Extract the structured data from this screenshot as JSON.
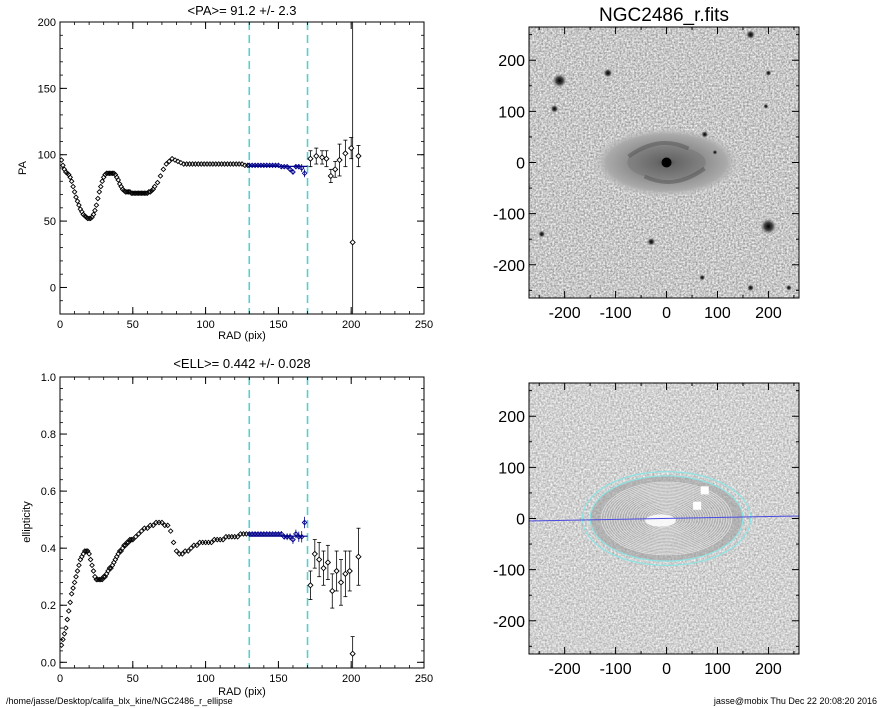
{
  "footer": {
    "path": "/home/jasse/Desktop/califa_blx_kine/NGC2486_r_ellipse",
    "stamp": "jasse@mobix  Thu Dec 22 20:08:20 2016"
  },
  "colors": {
    "ink": "#000000",
    "fit": "#00008b",
    "range": "#55d0d0",
    "contour": "#8fe3e3"
  },
  "chart_data": [
    {
      "type": "scatter",
      "title": "<PA>=  91.2 +/-   2.3",
      "xlabel": "RAD (pix)",
      "ylabel": "PA",
      "xlim": [
        0,
        250
      ],
      "ylim": [
        -20,
        200
      ],
      "xticks": [
        0,
        50,
        100,
        150,
        200,
        250
      ],
      "yticks": [
        0,
        50,
        100,
        150,
        200
      ],
      "range_lines": [
        130,
        170
      ],
      "fit_line": {
        "x": [
          130,
          170
        ],
        "y": [
          91.2,
          91.2
        ]
      },
      "profile": {
        "x": [
          1,
          2,
          3,
          4,
          5,
          6,
          7,
          8,
          9,
          10,
          11,
          12,
          13,
          14,
          15,
          16,
          17,
          18,
          19,
          20,
          21,
          22,
          23,
          24,
          25,
          26,
          27,
          28,
          29,
          30,
          31,
          32,
          33,
          34,
          35,
          36,
          37,
          38,
          39,
          40,
          41,
          42,
          43,
          44,
          45,
          46,
          47,
          48,
          49,
          50,
          51,
          52,
          53,
          54,
          55,
          56,
          57,
          58,
          59,
          60,
          61,
          62,
          63,
          64,
          65,
          67,
          69,
          71,
          73,
          75,
          77,
          79,
          81,
          83,
          85,
          87,
          89,
          91,
          93,
          95,
          97,
          99,
          101,
          103,
          105,
          107,
          109,
          111,
          113,
          115,
          117,
          119,
          121,
          123,
          125,
          127,
          129
        ],
        "y": [
          96,
          92,
          89,
          87,
          86,
          85,
          83,
          80,
          76,
          72,
          68,
          65,
          62,
          59,
          57,
          55,
          54,
          53,
          52,
          52,
          52,
          53,
          55,
          58,
          62,
          67,
          72,
          76,
          80,
          83,
          85,
          86,
          86,
          86,
          86,
          86,
          86,
          85,
          83,
          81,
          78,
          76,
          74,
          73,
          72,
          72,
          72,
          72,
          71,
          71,
          71,
          71,
          71,
          71,
          71,
          71,
          71,
          71,
          71,
          71,
          72,
          72,
          73,
          74,
          76,
          79,
          84,
          89,
          93,
          95,
          97,
          96,
          95,
          94,
          93,
          93,
          93,
          93,
          93,
          93,
          93,
          93,
          93,
          93,
          93,
          93,
          93,
          93,
          93,
          93,
          93,
          93,
          93,
          93,
          93,
          92,
          92
        ]
      },
      "fit_points": {
        "x": [
          130,
          132,
          134,
          136,
          138,
          140,
          142,
          144,
          146,
          148,
          150,
          152,
          154,
          156,
          158,
          160,
          162,
          164,
          166,
          168
        ],
        "y": [
          92,
          92,
          92,
          92,
          92,
          92,
          92,
          92,
          92,
          92,
          92,
          91,
          91,
          91,
          89,
          87,
          91,
          91,
          90,
          86
        ],
        "err": [
          1,
          1,
          1,
          1,
          1,
          1,
          1,
          1,
          1,
          1,
          1,
          1,
          1,
          1,
          2,
          2,
          2,
          2,
          3,
          3
        ]
      },
      "outer_points": {
        "x": [
          172,
          176,
          180,
          183,
          186,
          189,
          192,
          196,
          200,
          201,
          205
        ],
        "y": [
          97,
          99,
          98,
          97,
          84,
          89,
          96,
          101,
          105,
          34,
          99
        ],
        "err": [
          6,
          6,
          5,
          6,
          5,
          6,
          12,
          10,
          8,
          200,
          8
        ]
      }
    },
    {
      "type": "scatter",
      "title": "<ELL>= 0.442 +/-  0.028",
      "xlabel": "RAD (pix)",
      "ylabel": "ellipticity",
      "xlim": [
        0,
        250
      ],
      "ylim": [
        -0.02,
        1.0
      ],
      "xticks": [
        0,
        50,
        100,
        150,
        200,
        250
      ],
      "yticks": [
        0.0,
        0.2,
        0.4,
        0.6,
        0.8,
        1.0
      ],
      "range_lines": [
        130,
        170
      ],
      "fit_line": {
        "x": [
          130,
          170
        ],
        "y": [
          0.442,
          0.442
        ]
      },
      "profile": {
        "x": [
          1,
          2,
          3,
          4,
          5,
          6,
          7,
          8,
          9,
          10,
          11,
          12,
          13,
          14,
          15,
          16,
          17,
          18,
          19,
          20,
          21,
          22,
          23,
          24,
          25,
          26,
          27,
          28,
          29,
          30,
          31,
          32,
          33,
          34,
          35,
          36,
          37,
          38,
          39,
          40,
          41,
          42,
          43,
          44,
          45,
          46,
          47,
          48,
          49,
          50,
          52,
          54,
          56,
          58,
          60,
          62,
          64,
          66,
          68,
          70,
          72,
          74,
          76,
          78,
          80,
          82,
          84,
          86,
          88,
          90,
          92,
          94,
          96,
          98,
          100,
          102,
          104,
          106,
          108,
          110,
          112,
          114,
          116,
          118,
          120,
          122,
          124,
          126,
          128
        ],
        "y": [
          0.06,
          0.08,
          0.1,
          0.12,
          0.15,
          0.18,
          0.21,
          0.24,
          0.26,
          0.28,
          0.3,
          0.32,
          0.34,
          0.36,
          0.37,
          0.38,
          0.39,
          0.39,
          0.39,
          0.38,
          0.36,
          0.34,
          0.32,
          0.3,
          0.29,
          0.29,
          0.29,
          0.29,
          0.29,
          0.3,
          0.3,
          0.31,
          0.32,
          0.33,
          0.33,
          0.34,
          0.35,
          0.36,
          0.37,
          0.38,
          0.39,
          0.39,
          0.4,
          0.41,
          0.41,
          0.42,
          0.42,
          0.43,
          0.43,
          0.43,
          0.44,
          0.45,
          0.46,
          0.47,
          0.47,
          0.48,
          0.48,
          0.49,
          0.49,
          0.49,
          0.48,
          0.48,
          0.46,
          0.42,
          0.39,
          0.38,
          0.38,
          0.39,
          0.39,
          0.4,
          0.41,
          0.41,
          0.42,
          0.42,
          0.42,
          0.42,
          0.42,
          0.43,
          0.43,
          0.43,
          0.43,
          0.44,
          0.44,
          0.44,
          0.44,
          0.44,
          0.45,
          0.45,
          0.45
        ]
      },
      "fit_points": {
        "x": [
          130,
          132,
          134,
          136,
          138,
          140,
          142,
          144,
          146,
          148,
          150,
          152,
          154,
          156,
          158,
          160,
          162,
          164,
          166,
          168
        ],
        "y": [
          0.45,
          0.45,
          0.45,
          0.45,
          0.45,
          0.45,
          0.45,
          0.45,
          0.45,
          0.45,
          0.45,
          0.45,
          0.44,
          0.44,
          0.44,
          0.43,
          0.45,
          0.44,
          0.44,
          0.49
        ],
        "err": [
          0.008,
          0.008,
          0.008,
          0.008,
          0.008,
          0.008,
          0.008,
          0.008,
          0.008,
          0.008,
          0.008,
          0.01,
          0.01,
          0.012,
          0.012,
          0.015,
          0.015,
          0.018,
          0.02,
          0.02
        ]
      },
      "outer_points": {
        "x": [
          172,
          175,
          178,
          181,
          184,
          187,
          190,
          193,
          196,
          199,
          201,
          205
        ],
        "y": [
          0.27,
          0.38,
          0.36,
          0.33,
          0.35,
          0.25,
          0.32,
          0.28,
          0.31,
          0.32,
          0.03,
          0.37
        ],
        "err": [
          0.05,
          0.05,
          0.06,
          0.06,
          0.06,
          0.06,
          0.07,
          0.08,
          0.08,
          0.07,
          0.06,
          0.1
        ]
      }
    },
    {
      "type": "heatmap",
      "title": "NGC2486_r.fits",
      "xlabel": "",
      "ylabel": "",
      "xlim": [
        -270,
        260
      ],
      "ylim": [
        -265,
        265
      ],
      "xticks": [
        -200,
        -100,
        0,
        100,
        200
      ],
      "yticks": [
        -200,
        -100,
        0,
        100,
        200
      ],
      "galaxy": {
        "center": [
          0,
          0
        ],
        "semi_major": 140,
        "semi_minor": 60,
        "pa_deg": 91.2
      },
      "stars": [
        {
          "x": -210,
          "y": 160,
          "s": 14
        },
        {
          "x": -115,
          "y": 175,
          "s": 9
        },
        {
          "x": -220,
          "y": 105,
          "s": 8
        },
        {
          "x": 165,
          "y": 250,
          "s": 9
        },
        {
          "x": 200,
          "y": -125,
          "s": 16
        },
        {
          "x": 75,
          "y": 55,
          "s": 7
        },
        {
          "x": -30,
          "y": -155,
          "s": 8
        },
        {
          "x": -245,
          "y": -140,
          "s": 7
        },
        {
          "x": 70,
          "y": -225,
          "s": 6
        },
        {
          "x": 200,
          "y": 175,
          "s": 6
        },
        {
          "x": 240,
          "y": -245,
          "s": 6
        },
        {
          "x": 165,
          "y": -245,
          "s": 7
        },
        {
          "x": 195,
          "y": 110,
          "s": 5
        },
        {
          "x": 95,
          "y": 20,
          "s": 5
        }
      ]
    },
    {
      "type": "heatmap",
      "title": "",
      "xlabel": "",
      "ylabel": "",
      "xlim": [
        -270,
        260
      ],
      "ylim": [
        -265,
        265
      ],
      "xticks": [
        -200,
        -100,
        0,
        100,
        200
      ],
      "yticks": [
        -200,
        -100,
        0,
        100,
        200
      ],
      "ellipse_fit": {
        "center": [
          0,
          0
        ],
        "ell": 0.442,
        "pa_deg": 91.2,
        "outer_radii": [
          150,
          165
        ],
        "inner_radii_max": 130
      },
      "major_axis_line": {
        "x": [
          -270,
          260
        ],
        "y": [
          -5,
          5
        ]
      }
    }
  ]
}
